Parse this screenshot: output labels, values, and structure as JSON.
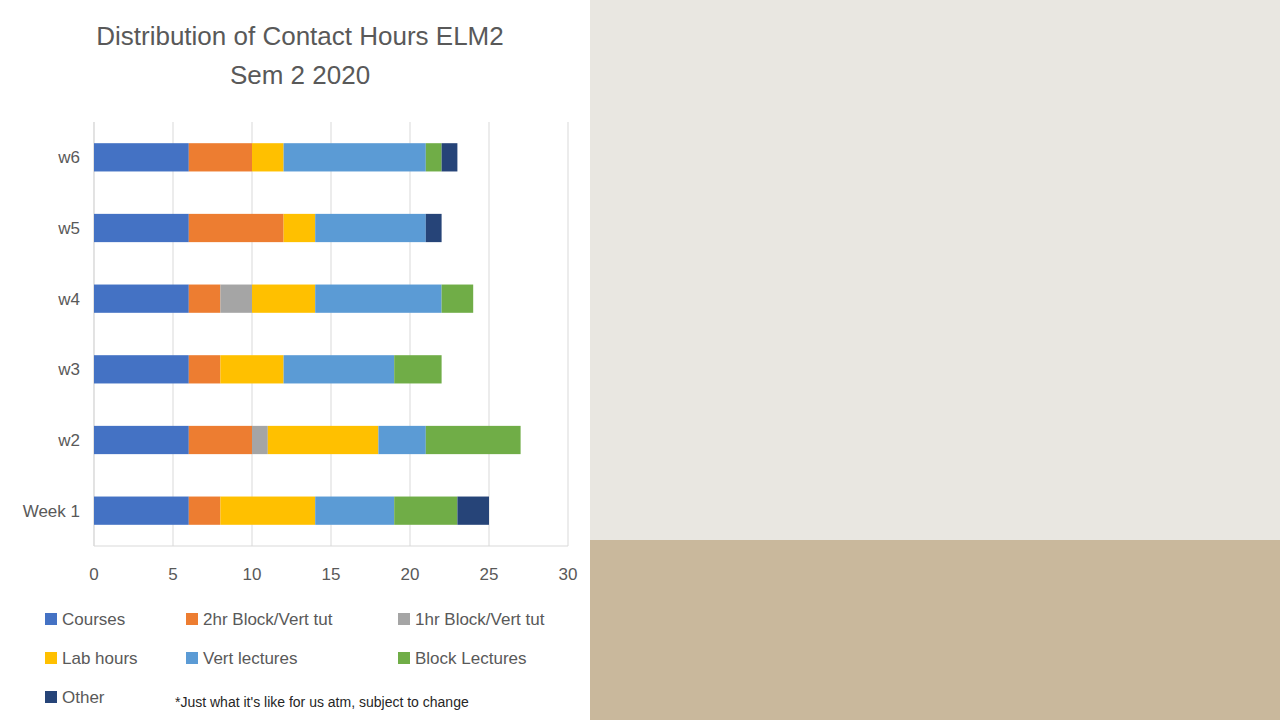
{
  "chart_data": {
    "type": "bar",
    "orientation": "horizontal",
    "stacked": true,
    "grid": true,
    "legend": "bottom",
    "title": "Distribution of Contact Hours ELM2",
    "subtitle": "Sem 2 2020",
    "annotation": "*Just what it's like for us atm, subject to change",
    "categories": [
      "Week 1",
      "w2",
      "w3",
      "w4",
      "w5",
      "w6"
    ],
    "series": [
      {
        "name": "Courses",
        "color": "#4472c4",
        "values": [
          6,
          6,
          6,
          6,
          6,
          6
        ]
      },
      {
        "name": "2hr Block/Vert tut",
        "color": "#ed7d31",
        "values": [
          2,
          4,
          2,
          2,
          6,
          4
        ]
      },
      {
        "name": "1hr Block/Vert tut",
        "color": "#a5a5a5",
        "values": [
          0,
          1,
          0,
          2,
          0,
          0
        ]
      },
      {
        "name": "Lab hours",
        "color": "#ffc000",
        "values": [
          6,
          7,
          4,
          4,
          2,
          2
        ]
      },
      {
        "name": "Vert lectures",
        "color": "#5b9bd5",
        "values": [
          5,
          3,
          7,
          8,
          7,
          9
        ]
      },
      {
        "name": "Block Lectures",
        "color": "#70ad47",
        "values": [
          4,
          6,
          3,
          2,
          0,
          1
        ]
      },
      {
        "name": "Other",
        "color": "#264478",
        "values": [
          2,
          0,
          0,
          0,
          1,
          1
        ]
      }
    ],
    "xlim": [
      0,
      30
    ],
    "xticks": [
      0,
      5,
      10,
      15,
      20,
      25,
      30
    ]
  }
}
